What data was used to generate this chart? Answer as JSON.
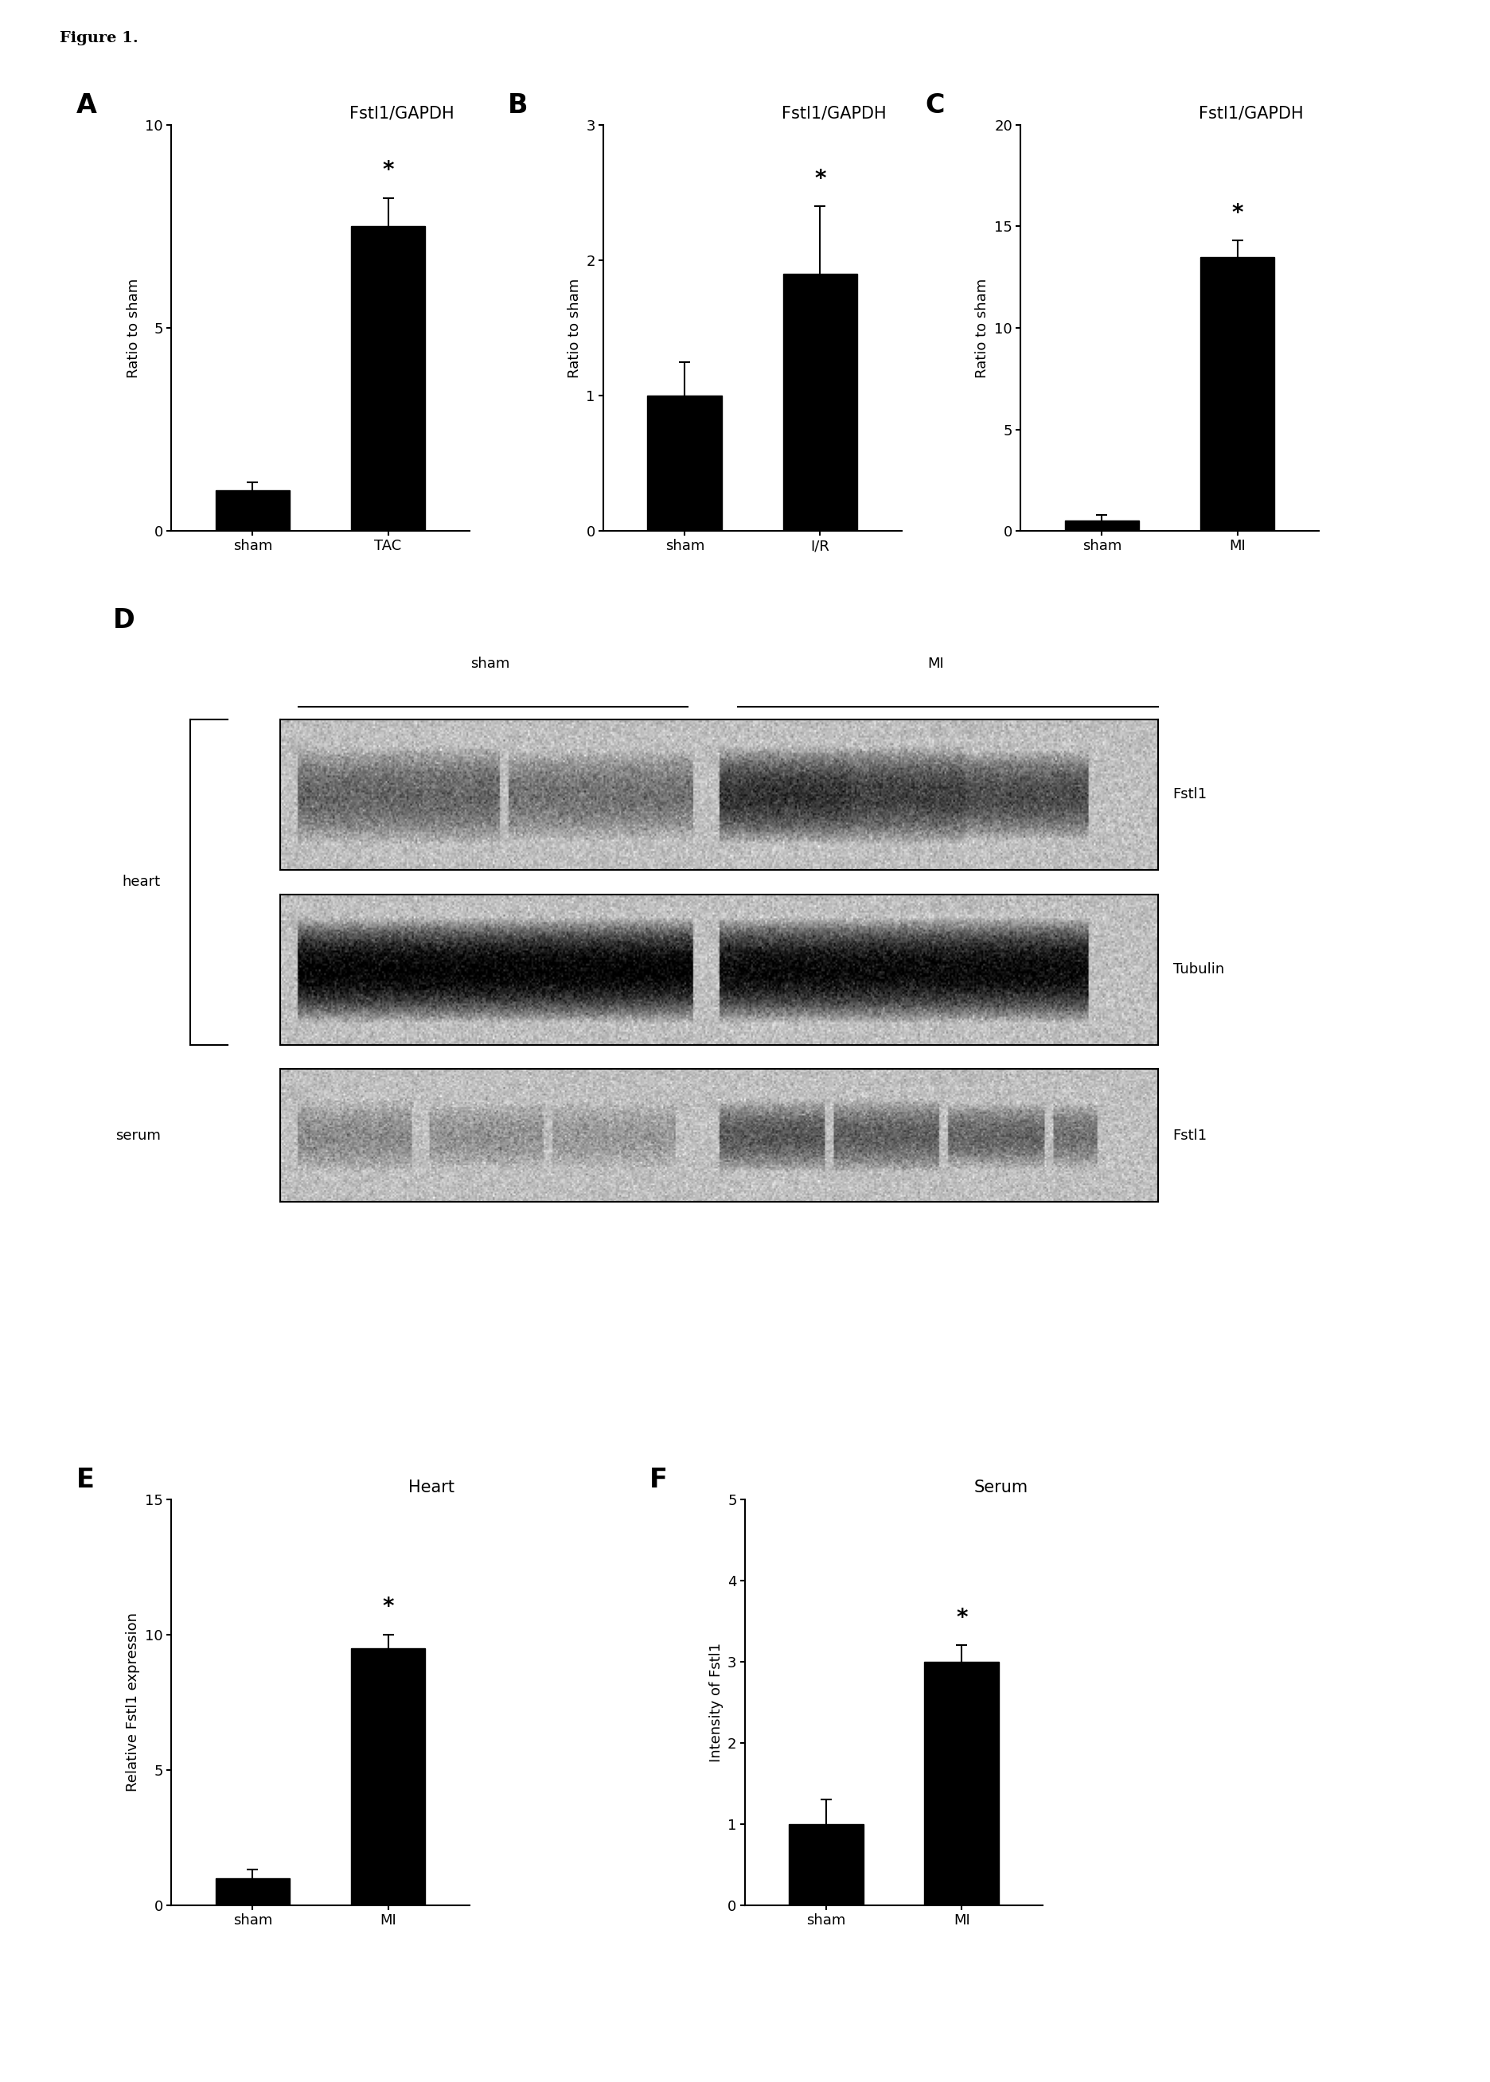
{
  "figure_title": "Figure 1.",
  "panels": {
    "A": {
      "title": "Fstl1/GAPDH",
      "categories": [
        "sham",
        "TAC"
      ],
      "values": [
        1.0,
        7.5
      ],
      "errors": [
        0.2,
        0.7
      ],
      "ylim": [
        0,
        10
      ],
      "yticks": [
        0,
        5,
        10
      ],
      "ylabel": "Ratio to sham",
      "star_bar": "TAC"
    },
    "B": {
      "title": "Fstl1/GAPDH",
      "categories": [
        "sham",
        "I/R"
      ],
      "values": [
        1.0,
        1.9
      ],
      "errors": [
        0.25,
        0.5
      ],
      "ylim": [
        0,
        3
      ],
      "yticks": [
        0,
        1,
        2,
        3
      ],
      "ylabel": "Ratio to sham",
      "star_bar": "I/R"
    },
    "C": {
      "title": "Fstl1/GAPDH",
      "categories": [
        "sham",
        "MI"
      ],
      "values": [
        0.5,
        13.5
      ],
      "errors": [
        0.3,
        0.8
      ],
      "ylim": [
        0,
        20
      ],
      "yticks": [
        0,
        5,
        10,
        15,
        20
      ],
      "ylabel": "Ratio to sham",
      "star_bar": "MI"
    },
    "E": {
      "title": "Heart",
      "categories": [
        "sham",
        "MI"
      ],
      "values": [
        1.0,
        9.5
      ],
      "errors": [
        0.3,
        0.5
      ],
      "ylim": [
        0,
        15
      ],
      "yticks": [
        0,
        5,
        10,
        15
      ],
      "ylabel": "Relative Fstl1 expression",
      "star_bar": "MI"
    },
    "F": {
      "title": "Serum",
      "categories": [
        "sham",
        "MI"
      ],
      "values": [
        1.0,
        3.0
      ],
      "errors": [
        0.3,
        0.2
      ],
      "ylim": [
        0,
        5
      ],
      "yticks": [
        0,
        1,
        2,
        3,
        4,
        5
      ],
      "ylabel": "Intensity of Fstl1",
      "star_bar": "MI"
    }
  },
  "bar_color": "#000000",
  "background_color": "#ffffff",
  "panel_label_fontsize": 24,
  "title_fontsize": 15,
  "tick_fontsize": 13,
  "ylabel_fontsize": 13,
  "star_fontsize": 20,
  "fig_text_fontsize": 14
}
